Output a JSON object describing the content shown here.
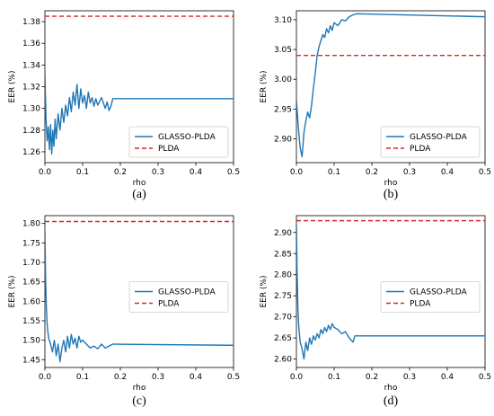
{
  "colors": {
    "glasso": "#1f77b4",
    "plda": "#d62728"
  },
  "chart_data": [
    {
      "type": "line",
      "caption": "(a)",
      "xlabel": "rho",
      "ylabel": "EER (%)",
      "xlim": [
        0,
        0.5
      ],
      "ylim": [
        1.25,
        1.39
      ],
      "xticks": [
        0.0,
        0.1,
        0.2,
        0.3,
        0.4,
        0.5
      ],
      "xtick_labels": [
        "0.0",
        "0.1",
        "0.2",
        "0.3",
        "0.4",
        "0.5"
      ],
      "yticks": [
        1.26,
        1.28,
        1.3,
        1.32,
        1.34,
        1.36,
        1.38
      ],
      "ytick_labels": [
        "1.26",
        "1.28",
        "1.30",
        "1.32",
        "1.34",
        "1.36",
        "1.38"
      ],
      "legend_position": "lower-right",
      "series": [
        {
          "name": "GLASSO-PLDA",
          "style": "solid",
          "x": [
            0.0,
            0.003,
            0.006,
            0.009,
            0.012,
            0.015,
            0.018,
            0.021,
            0.024,
            0.027,
            0.03,
            0.035,
            0.04,
            0.045,
            0.05,
            0.055,
            0.06,
            0.065,
            0.07,
            0.075,
            0.08,
            0.085,
            0.09,
            0.095,
            0.1,
            0.105,
            0.11,
            0.115,
            0.12,
            0.125,
            0.13,
            0.135,
            0.14,
            0.15,
            0.16,
            0.165,
            0.17,
            0.175,
            0.18,
            0.185,
            0.19,
            0.5
          ],
          "y": [
            1.332,
            1.29,
            1.27,
            1.283,
            1.262,
            1.285,
            1.258,
            1.28,
            1.265,
            1.29,
            1.272,
            1.295,
            1.28,
            1.3,
            1.287,
            1.303,
            1.293,
            1.31,
            1.297,
            1.315,
            1.303,
            1.322,
            1.3,
            1.318,
            1.305,
            1.312,
            1.3,
            1.315,
            1.305,
            1.31,
            1.302,
            1.309,
            1.303,
            1.31,
            1.3,
            1.306,
            1.298,
            1.302,
            1.309,
            1.309,
            1.309,
            1.309
          ]
        },
        {
          "name": "PLDA",
          "style": "dashed",
          "x": [
            0.0,
            0.5
          ],
          "y": [
            1.385,
            1.385
          ]
        }
      ]
    },
    {
      "type": "line",
      "caption": "(b)",
      "xlabel": "rho",
      "ylabel": "EER (%)",
      "xlim": [
        0,
        0.5
      ],
      "ylim": [
        2.86,
        3.115
      ],
      "xticks": [
        0.0,
        0.1,
        0.2,
        0.3,
        0.4,
        0.5
      ],
      "xtick_labels": [
        "0.0",
        "0.1",
        "0.2",
        "0.3",
        "0.4",
        "0.5"
      ],
      "yticks": [
        2.9,
        2.95,
        3.0,
        3.05,
        3.1
      ],
      "ytick_labels": [
        "2.90",
        "2.95",
        "3.00",
        "3.05",
        "3.10"
      ],
      "legend_position": "lower-right",
      "series": [
        {
          "name": "GLASSO-PLDA",
          "style": "solid",
          "x": [
            0.0,
            0.005,
            0.01,
            0.015,
            0.02,
            0.025,
            0.03,
            0.035,
            0.04,
            0.045,
            0.05,
            0.055,
            0.06,
            0.065,
            0.07,
            0.075,
            0.08,
            0.085,
            0.09,
            0.095,
            0.1,
            0.11,
            0.12,
            0.13,
            0.14,
            0.15,
            0.16,
            0.5
          ],
          "y": [
            2.965,
            2.92,
            2.885,
            2.87,
            2.91,
            2.93,
            2.945,
            2.935,
            2.955,
            2.985,
            3.01,
            3.04,
            3.055,
            3.065,
            3.075,
            3.07,
            3.085,
            3.078,
            3.09,
            3.082,
            3.095,
            3.09,
            3.1,
            3.098,
            3.105,
            3.108,
            3.11,
            3.105
          ]
        },
        {
          "name": "PLDA",
          "style": "dashed",
          "x": [
            0.0,
            0.5
          ],
          "y": [
            3.04,
            3.04
          ]
        }
      ]
    },
    {
      "type": "line",
      "caption": "(c)",
      "xlabel": "rho",
      "ylabel": "EER (%)",
      "xlim": [
        0,
        0.5
      ],
      "ylim": [
        1.43,
        1.82
      ],
      "xticks": [
        0.0,
        0.1,
        0.2,
        0.3,
        0.4,
        0.5
      ],
      "xtick_labels": [
        "0.0",
        "0.1",
        "0.2",
        "0.3",
        "0.4",
        "0.5"
      ],
      "yticks": [
        1.45,
        1.5,
        1.55,
        1.6,
        1.65,
        1.7,
        1.75,
        1.8
      ],
      "ytick_labels": [
        "1.45",
        "1.50",
        "1.55",
        "1.60",
        "1.65",
        "1.70",
        "1.75",
        "1.80"
      ],
      "legend_position": "center-right",
      "series": [
        {
          "name": "GLASSO-PLDA",
          "style": "solid",
          "x": [
            0.0,
            0.002,
            0.004,
            0.006,
            0.008,
            0.01,
            0.015,
            0.02,
            0.025,
            0.03,
            0.035,
            0.04,
            0.045,
            0.05,
            0.055,
            0.06,
            0.065,
            0.07,
            0.075,
            0.08,
            0.085,
            0.09,
            0.095,
            0.1,
            0.11,
            0.12,
            0.13,
            0.14,
            0.15,
            0.16,
            0.17,
            0.18,
            0.5
          ],
          "y": [
            1.78,
            1.65,
            1.58,
            1.54,
            1.52,
            1.505,
            1.49,
            1.47,
            1.5,
            1.46,
            1.49,
            1.445,
            1.48,
            1.5,
            1.47,
            1.51,
            1.48,
            1.515,
            1.49,
            1.505,
            1.48,
            1.51,
            1.495,
            1.5,
            1.49,
            1.48,
            1.485,
            1.478,
            1.49,
            1.48,
            1.485,
            1.49,
            1.487
          ]
        },
        {
          "name": "PLDA",
          "style": "dashed",
          "x": [
            0.0,
            0.5
          ],
          "y": [
            1.805,
            1.805
          ]
        }
      ]
    },
    {
      "type": "line",
      "caption": "(d)",
      "xlabel": "rho",
      "ylabel": "EER (%)",
      "xlim": [
        0,
        0.5
      ],
      "ylim": [
        2.58,
        2.94
      ],
      "xticks": [
        0.0,
        0.1,
        0.2,
        0.3,
        0.4,
        0.5
      ],
      "xtick_labels": [
        "0.0",
        "0.1",
        "0.2",
        "0.3",
        "0.4",
        "0.5"
      ],
      "yticks": [
        2.6,
        2.65,
        2.7,
        2.75,
        2.8,
        2.85,
        2.9
      ],
      "ytick_labels": [
        "2.60",
        "2.65",
        "2.70",
        "2.75",
        "2.80",
        "2.85",
        "2.90"
      ],
      "legend_position": "center-right",
      "series": [
        {
          "name": "GLASSO-PLDA",
          "style": "solid",
          "x": [
            0.0,
            0.002,
            0.004,
            0.006,
            0.008,
            0.01,
            0.015,
            0.02,
            0.025,
            0.03,
            0.035,
            0.04,
            0.045,
            0.05,
            0.055,
            0.06,
            0.065,
            0.07,
            0.075,
            0.08,
            0.085,
            0.09,
            0.095,
            0.1,
            0.11,
            0.12,
            0.13,
            0.14,
            0.15,
            0.155,
            0.16,
            0.5
          ],
          "y": [
            2.92,
            2.8,
            2.72,
            2.68,
            2.66,
            2.64,
            2.625,
            2.6,
            2.64,
            2.62,
            2.65,
            2.635,
            2.655,
            2.645,
            2.66,
            2.65,
            2.67,
            2.66,
            2.675,
            2.665,
            2.68,
            2.67,
            2.684,
            2.675,
            2.67,
            2.66,
            2.665,
            2.65,
            2.64,
            2.655,
            2.655,
            2.655
          ]
        },
        {
          "name": "PLDA",
          "style": "dashed",
          "x": [
            0.0,
            0.5
          ],
          "y": [
            2.928,
            2.928
          ]
        }
      ]
    }
  ]
}
